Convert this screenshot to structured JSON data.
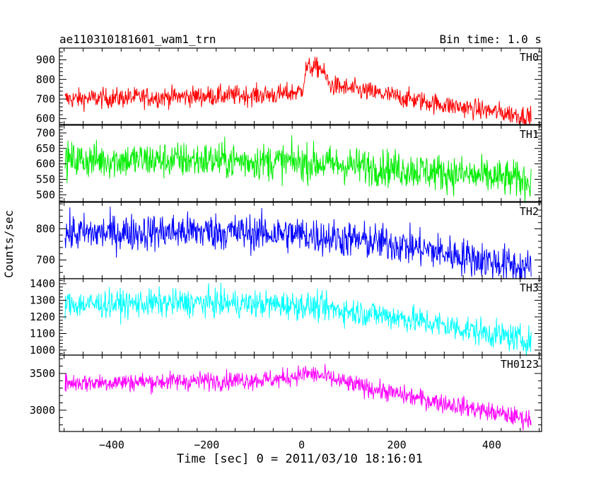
{
  "header": {
    "title": "ae110310181601_wam1_trn",
    "bin_time": "Bin time: 1.0 s"
  },
  "axes": {
    "xlabel": "Time [sec] 0 = 2011/03/10 18:16:01",
    "ylabel": "Counts/sec"
  },
  "chart_data": {
    "type": "line",
    "xlim": [
      -510,
      505
    ],
    "x_ticks": [
      -400,
      -200,
      0,
      200,
      400
    ],
    "x_tick_labels": [
      "−400",
      "−200",
      "0",
      "200",
      "400"
    ],
    "x_start": -498,
    "x_end": 483,
    "x_step": 1,
    "panels": [
      {
        "label": "TH0",
        "color": "#ff0000",
        "ylim": [
          570,
          960
        ],
        "y_ticks": [
          600,
          700,
          800,
          900
        ],
        "y_tick_labels": [
          "600",
          "700",
          "800",
          "900"
        ],
        "trend": [
          [
            -498,
            700
          ],
          [
            -200,
            715
          ],
          [
            -50,
            722
          ],
          [
            0,
            740
          ],
          [
            10,
            860
          ],
          [
            40,
            860
          ],
          [
            60,
            770
          ],
          [
            300,
            670
          ],
          [
            483,
            610
          ]
        ],
        "noise": 26
      },
      {
        "label": "TH1",
        "color": "#00ee00",
        "ylim": [
          478,
          725
        ],
        "y_ticks": [
          500,
          550,
          600,
          650,
          700
        ],
        "y_tick_labels": [
          "500",
          "550",
          "600",
          "650",
          "700"
        ],
        "trend": [
          [
            -498,
            612
          ],
          [
            -200,
            612
          ],
          [
            0,
            605
          ],
          [
            200,
            585
          ],
          [
            483,
            545
          ]
        ],
        "noise": 30
      },
      {
        "label": "TH2",
        "color": "#0000ff",
        "ylim": [
          640,
          885
        ],
        "y_ticks": [
          700,
          800
        ],
        "y_tick_labels": [
          "700",
          "800"
        ],
        "trend": [
          [
            -498,
            785
          ],
          [
            -200,
            792
          ],
          [
            0,
            782
          ],
          [
            200,
            750
          ],
          [
            483,
            672
          ]
        ],
        "noise": 30
      },
      {
        "label": "TH3",
        "color": "#00ffff",
        "ylim": [
          970,
          1430
        ],
        "y_ticks": [
          1000,
          1100,
          1200,
          1300,
          1400
        ],
        "y_tick_labels": [
          "1000",
          "1100",
          "1200",
          "1300",
          "1400"
        ],
        "trend": [
          [
            -498,
            1275
          ],
          [
            -200,
            1285
          ],
          [
            0,
            1270
          ],
          [
            200,
            1200
          ],
          [
            483,
            1055
          ]
        ],
        "noise": 42
      },
      {
        "label": "TH0123",
        "color": "#ff00ff",
        "ylim": [
          2710,
          3750
        ],
        "y_ticks": [
          3000,
          3500
        ],
        "y_tick_labels": [
          "3000",
          "3500"
        ],
        "trend": [
          [
            -498,
            3370
          ],
          [
            -200,
            3400
          ],
          [
            -50,
            3420
          ],
          [
            10,
            3500
          ],
          [
            40,
            3470
          ],
          [
            100,
            3360
          ],
          [
            200,
            3220
          ],
          [
            483,
            2870
          ]
        ],
        "noise": 65
      }
    ]
  }
}
